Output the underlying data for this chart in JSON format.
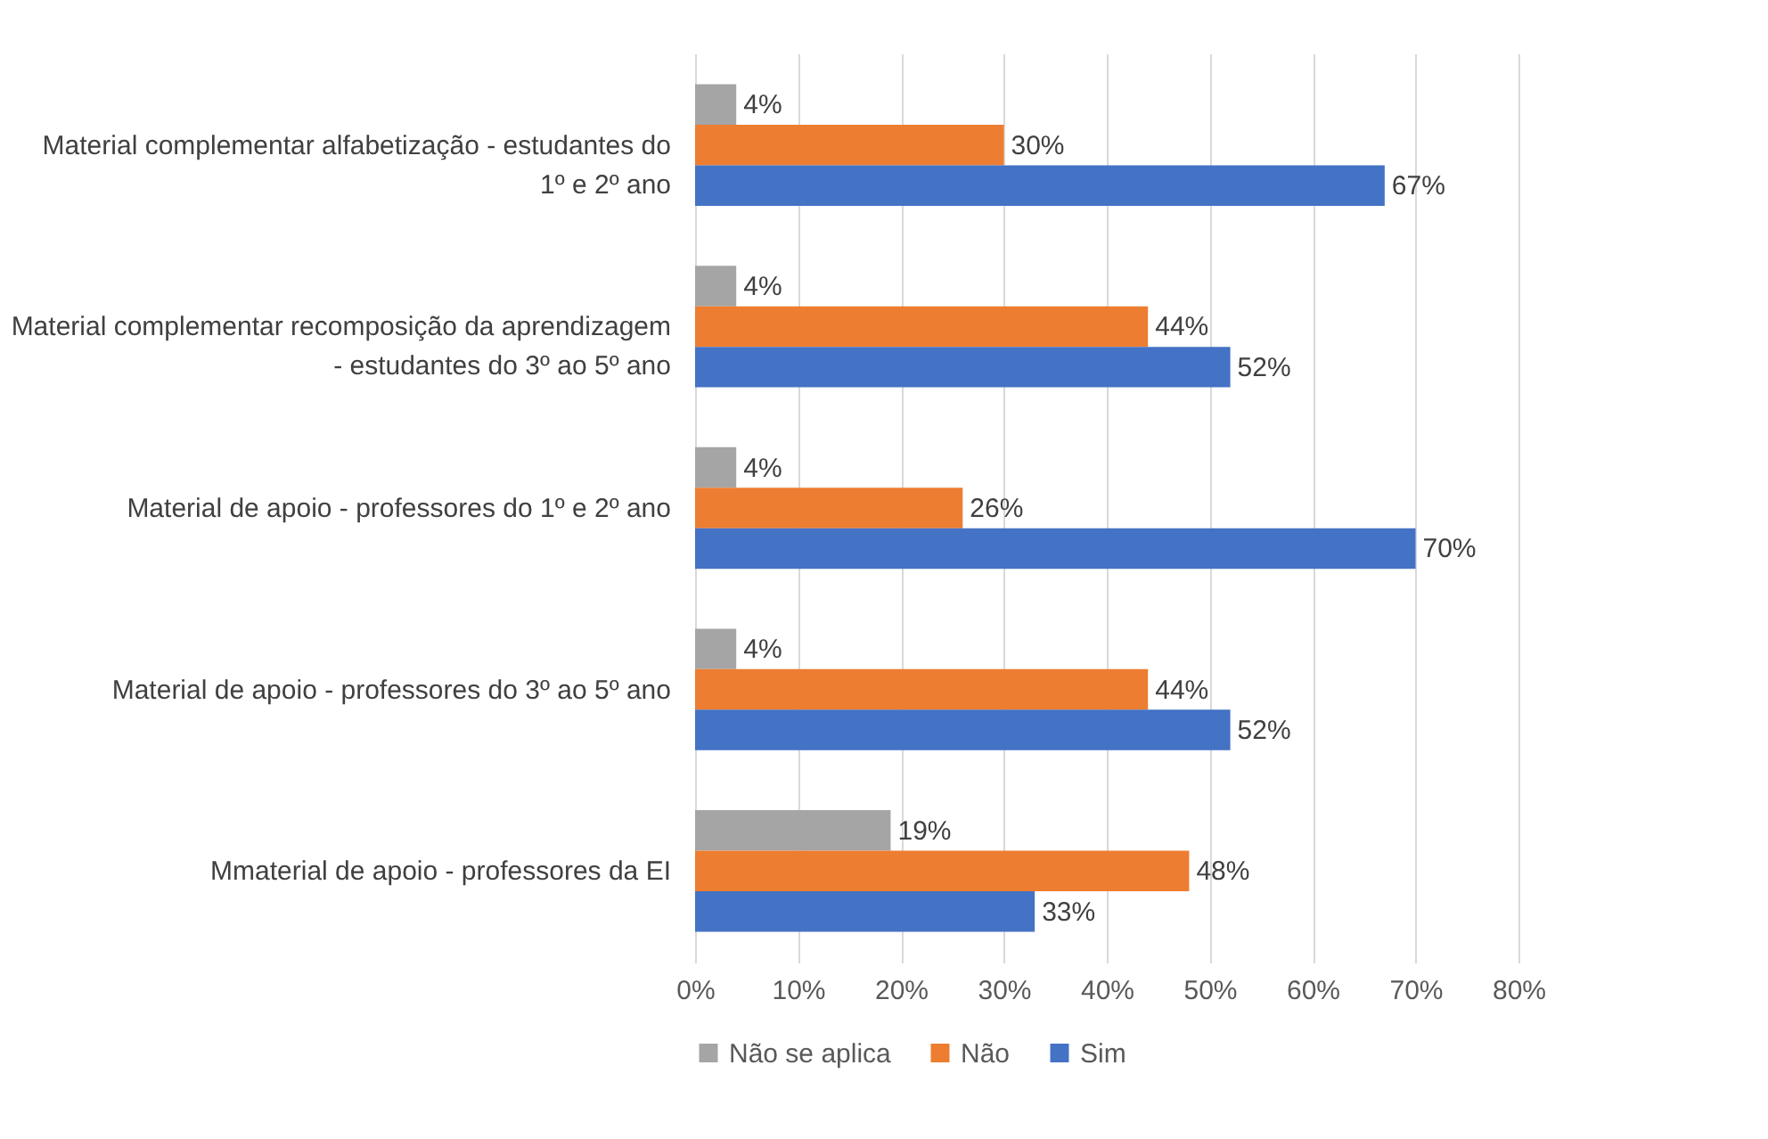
{
  "chart_data": {
    "type": "bar",
    "orientation": "horizontal",
    "categories": [
      "Material complementar alfabetização - estudantes do 1º e 2º ano",
      "Material complementar recomposição da aprendizagem - estudantes do 3º ao 5º ano",
      "Material de apoio - professores do 1º e 2º ano",
      "Material de apoio - professores do 3º ao 5º ano",
      "Mmaterial de apoio - professores da EI"
    ],
    "series": [
      {
        "name": "Não se aplica",
        "color": "#a5a5a5",
        "values": [
          4,
          4,
          4,
          4,
          19
        ],
        "value_labels": [
          "4%",
          "4%",
          "4%",
          "4%",
          "19%"
        ]
      },
      {
        "name": "Não",
        "color": "#ed7d31",
        "values": [
          30,
          44,
          26,
          44,
          48
        ],
        "value_labels": [
          "30%",
          "44%",
          "26%",
          "44%",
          "48%"
        ]
      },
      {
        "name": "Sim",
        "color": "#4472c4",
        "values": [
          67,
          52,
          70,
          52,
          33
        ],
        "value_labels": [
          "67%",
          "52%",
          "70%",
          "52%",
          "33%"
        ]
      }
    ],
    "xlim": [
      0,
      80
    ],
    "xticks": [
      {
        "value": 0,
        "label": "0%"
      },
      {
        "value": 10,
        "label": "10%"
      },
      {
        "value": 20,
        "label": "20%"
      },
      {
        "value": 30,
        "label": "30%"
      },
      {
        "value": 40,
        "label": "40%"
      },
      {
        "value": 50,
        "label": "50%"
      },
      {
        "value": 60,
        "label": "60%"
      },
      {
        "value": 70,
        "label": "70%"
      },
      {
        "value": 80,
        "label": "80%"
      }
    ],
    "grid": "x",
    "legend": "bottom"
  }
}
